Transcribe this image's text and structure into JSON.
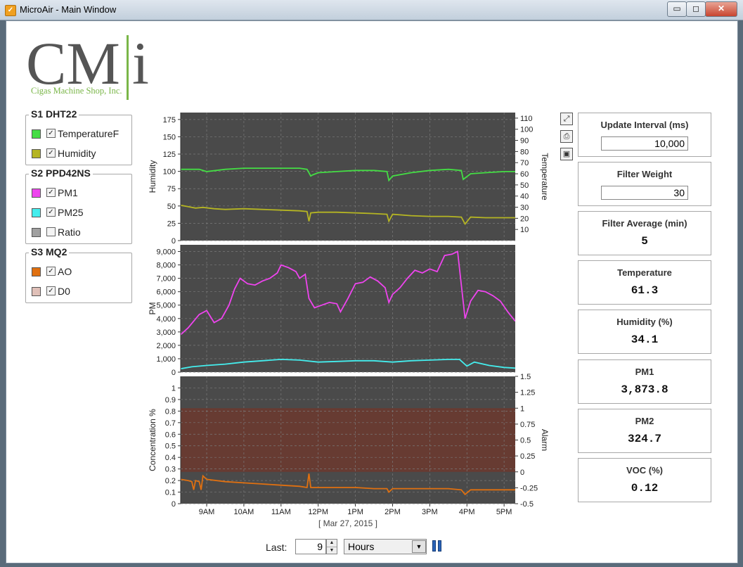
{
  "window": {
    "title": "MicroAir - Main Window",
    "min_icon": "minimize-icon",
    "max_icon": "maximize-icon",
    "close_icon": "close-icon",
    "min_glyph": "▭",
    "max_glyph": "◻",
    "close_glyph": "✕"
  },
  "logo": {
    "letters": "CM",
    "letter_i": "i",
    "company": "Cigas Machine Shop, Inc.",
    "gray": "#555555",
    "green": "#7ab648"
  },
  "groups": [
    {
      "title": "S1 DHT22",
      "items": [
        {
          "label": "TemperatureF",
          "color": "#44dd44",
          "checked": true
        },
        {
          "label": "Humidity",
          "color": "#b5b523",
          "checked": true
        }
      ]
    },
    {
      "title": "S2 PPD42NS",
      "items": [
        {
          "label": "PM1",
          "color": "#ee44ee",
          "checked": true
        },
        {
          "label": "PM25",
          "color": "#44eeee",
          "checked": true
        },
        {
          "label": "Ratio",
          "color": "#a0a0a0",
          "checked": false
        }
      ]
    },
    {
      "title": "S3 MQ2",
      "items": [
        {
          "label": "AO",
          "color": "#e07010",
          "checked": true
        },
        {
          "label": "D0",
          "color": "#e0c0b8",
          "checked": true
        }
      ]
    }
  ],
  "tools": {
    "zoom_icon": "fit-to-window-icon",
    "print_icon": "printer-icon",
    "save_icon": "save-icon",
    "zoom_glyph": "⤢",
    "print_glyph": "⎙",
    "save_glyph": "▣"
  },
  "info": {
    "update_interval": {
      "label": "Update Interval (ms)",
      "value": "10,000"
    },
    "filter_weight": {
      "label": "Filter Weight",
      "value": "30"
    },
    "filter_average": {
      "label": "Filter  Average (min)",
      "value": "5"
    },
    "temperature": {
      "label": "Temperature",
      "value": "61.3"
    },
    "humidity": {
      "label": "Humidity (%)",
      "value": "34.1"
    },
    "pm1": {
      "label": "PM1",
      "value": "3,873.8"
    },
    "pm2": {
      "label": "PM2",
      "value": "324.7"
    },
    "voc": {
      "label": "VOC (%)",
      "value": "0.12"
    }
  },
  "controls": {
    "last_label": "Last:",
    "last_value": "9",
    "units": "Hours",
    "spin_up": "▲",
    "spin_down": "▼",
    "dropdown_glyph": "▼",
    "pause_icon": "pause-icon"
  },
  "chart_data": [
    {
      "type": "line",
      "title": "",
      "ylabel": "Humidity",
      "y2label": "Temperature",
      "ylim": [
        0,
        185
      ],
      "yticks": [
        0,
        25,
        50,
        75,
        100,
        125,
        150,
        175
      ],
      "y2lim": [
        0,
        115
      ],
      "y2ticks": [
        10,
        20,
        30,
        40,
        50,
        60,
        70,
        80,
        90,
        100,
        110
      ],
      "grid": true,
      "background": "#4a4a4a",
      "series": [
        {
          "name": "TemperatureF",
          "axis": "right",
          "color": "#44dd44",
          "x": [
            8.3,
            8.5,
            8.8,
            9.0,
            9.5,
            10.0,
            10.5,
            11.0,
            11.5,
            11.7,
            11.8,
            11.85,
            12.0,
            12.5,
            13.0,
            13.5,
            13.85,
            13.9,
            14.0,
            14.5,
            15.0,
            15.5,
            15.85,
            15.9,
            16.1,
            16.5,
            17.0,
            17.3
          ],
          "y": [
            64,
            64,
            64,
            62,
            64,
            65,
            65,
            65,
            65,
            64,
            58,
            59,
            61,
            62,
            63,
            63,
            62,
            54,
            58,
            61,
            63,
            64,
            63,
            55,
            60,
            61,
            62,
            62
          ]
        },
        {
          "name": "Humidity",
          "axis": "left",
          "color": "#b5b523",
          "x": [
            8.3,
            8.5,
            8.7,
            8.9,
            9.2,
            9.5,
            10.0,
            10.5,
            11.0,
            11.5,
            11.7,
            11.75,
            11.8,
            12.0,
            12.5,
            13.0,
            13.5,
            13.85,
            13.9,
            14.0,
            14.5,
            15.0,
            15.5,
            15.85,
            15.95,
            16.1,
            16.5,
            17.0,
            17.3
          ],
          "y": [
            51,
            49,
            47,
            48,
            46,
            45,
            46,
            45,
            44,
            43,
            42,
            28,
            40,
            41,
            41,
            40,
            39,
            38,
            28,
            38,
            36,
            35,
            35,
            34,
            24,
            34,
            33,
            33,
            33
          ]
        }
      ]
    },
    {
      "type": "line",
      "title": "",
      "ylabel": "PM",
      "ylim": [
        0,
        9500
      ],
      "yticks": [
        0,
        1000,
        2000,
        3000,
        4000,
        5000,
        6000,
        7000,
        8000,
        9000
      ],
      "ytick_labels": [
        "0",
        "1,000",
        "2,000",
        "3,000",
        "4,000",
        "5,000",
        "6,000",
        "7,000",
        "8,000",
        "9,000"
      ],
      "grid": true,
      "background": "#4a4a4a",
      "series": [
        {
          "name": "PM1",
          "color": "#ee44ee",
          "x": [
            8.3,
            8.5,
            8.8,
            9.0,
            9.2,
            9.4,
            9.6,
            9.75,
            9.9,
            10.1,
            10.3,
            10.5,
            10.7,
            10.9,
            11.0,
            11.2,
            11.4,
            11.5,
            11.65,
            11.75,
            11.9,
            12.1,
            12.3,
            12.5,
            12.6,
            12.8,
            13.0,
            13.2,
            13.4,
            13.6,
            13.8,
            13.9,
            14.0,
            14.2,
            14.4,
            14.6,
            14.8,
            15.0,
            15.2,
            15.4,
            15.6,
            15.75,
            15.85,
            15.95,
            16.1,
            16.3,
            16.5,
            16.7,
            16.9,
            17.1,
            17.3
          ],
          "y": [
            2800,
            3300,
            4300,
            4600,
            3700,
            4000,
            5000,
            6200,
            7000,
            6600,
            6500,
            6800,
            7000,
            7400,
            8000,
            7800,
            7500,
            7000,
            7300,
            5500,
            4800,
            5000,
            5200,
            5100,
            4500,
            5500,
            6600,
            6700,
            7100,
            6800,
            6300,
            5200,
            5800,
            6300,
            7000,
            7600,
            7400,
            7700,
            7500,
            8700,
            8800,
            9000,
            6500,
            4000,
            5300,
            6100,
            6000,
            5700,
            5300,
            4500,
            3800
          ]
        },
        {
          "name": "PM25",
          "color": "#44eeee",
          "x": [
            8.3,
            8.6,
            9.0,
            9.5,
            10.0,
            10.5,
            11.0,
            11.5,
            12.0,
            12.5,
            13.0,
            13.5,
            14.0,
            14.5,
            15.0,
            15.5,
            15.8,
            16.0,
            16.2,
            16.6,
            17.0,
            17.3
          ],
          "y": [
            250,
            400,
            500,
            600,
            750,
            850,
            950,
            900,
            750,
            800,
            850,
            850,
            750,
            850,
            900,
            950,
            950,
            450,
            750,
            500,
            350,
            300
          ]
        }
      ]
    },
    {
      "type": "line",
      "title": "",
      "ylabel": "Concentration %",
      "y2label": "Alarm",
      "ylim": [
        0,
        1.1
      ],
      "yticks": [
        0,
        0.1,
        0.2,
        0.3,
        0.4,
        0.5,
        0.6,
        0.7,
        0.8,
        0.9,
        1
      ],
      "y2lim": [
        -0.5,
        1.5
      ],
      "y2ticks": [
        -0.5,
        -0.25,
        0,
        0.25,
        0.5,
        0.75,
        1,
        1.25,
        1.5
      ],
      "alarm_band": {
        "from": 0,
        "to": 1,
        "axis": "right",
        "color": "#6a3a30"
      },
      "grid": true,
      "background": "#4a4a4a",
      "xlabel": "[ Mar 27, 2015 ]",
      "x_ticks": [
        9,
        10,
        11,
        12,
        13,
        14,
        15,
        16,
        17
      ],
      "x_tick_labels": [
        "9AM",
        "10AM",
        "11AM",
        "12PM",
        "1PM",
        "2PM",
        "3PM",
        "4PM",
        "5PM"
      ],
      "xlim": [
        8.3,
        17.3
      ],
      "series": [
        {
          "name": "AO",
          "color": "#e07010",
          "x": [
            8.3,
            8.5,
            8.6,
            8.65,
            8.7,
            8.8,
            8.85,
            8.9,
            9.0,
            9.5,
            10.0,
            10.5,
            11.0,
            11.5,
            11.7,
            11.75,
            11.8,
            12.0,
            12.5,
            13.0,
            13.5,
            13.85,
            13.9,
            14.0,
            14.5,
            15.0,
            15.5,
            15.85,
            15.95,
            16.1,
            16.5,
            17.0,
            17.3
          ],
          "y": [
            0.21,
            0.2,
            0.19,
            0.12,
            0.2,
            0.19,
            0.12,
            0.24,
            0.21,
            0.19,
            0.18,
            0.17,
            0.16,
            0.15,
            0.14,
            0.26,
            0.14,
            0.14,
            0.14,
            0.14,
            0.13,
            0.13,
            0.1,
            0.13,
            0.13,
            0.13,
            0.13,
            0.12,
            0.08,
            0.12,
            0.12,
            0.12,
            0.12
          ]
        }
      ]
    }
  ]
}
